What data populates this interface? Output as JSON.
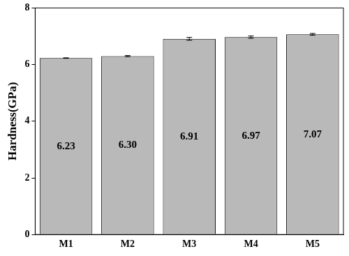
{
  "chart_data": {
    "type": "bar",
    "y_label": "Hardness(GPa)",
    "categories": [
      "M1",
      "M2",
      "M3",
      "M4",
      "M5"
    ],
    "values": [
      6.23,
      6.3,
      6.91,
      6.97,
      7.07
    ],
    "value_labels": [
      "6.23",
      "6.30",
      "6.91",
      "6.97",
      "7.07"
    ],
    "errors": [
      0.01,
      0.02,
      0.05,
      0.04,
      0.03
    ],
    "color": "#b9b9b9",
    "ylim": [
      0,
      8
    ],
    "yticks": [
      0,
      2,
      4,
      6,
      8
    ],
    "grid": false,
    "data_labels": true
  }
}
